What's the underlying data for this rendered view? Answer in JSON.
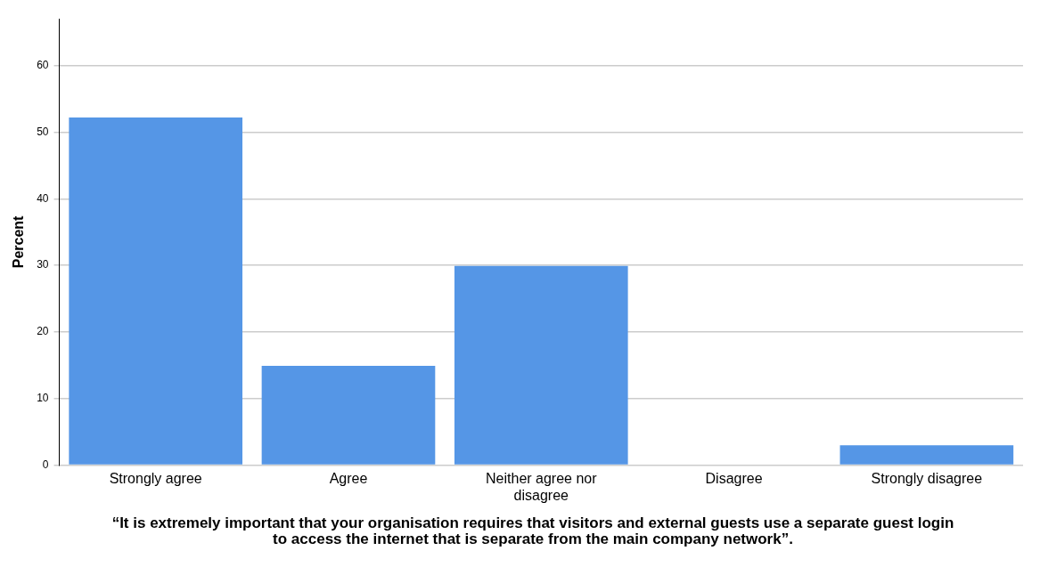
{
  "chart_data": {
    "type": "bar",
    "xlabel": "“It is extremely important that your organisation requires that visitors and external guests use a separate guest login to access the internet that is separate from the main company network”.",
    "ylabel": "Percent",
    "categories": [
      "Strongly agree",
      "Agree",
      "Neither agree nor disagree",
      "Disagree",
      "Strongly disagree"
    ],
    "values": [
      52.2,
      14.9,
      29.9,
      0,
      3.0
    ],
    "color": "#5596e6",
    "ylim": [
      0,
      67
    ],
    "yticks": [
      0,
      10,
      20,
      30,
      40,
      50,
      60
    ],
    "grid": "y"
  }
}
